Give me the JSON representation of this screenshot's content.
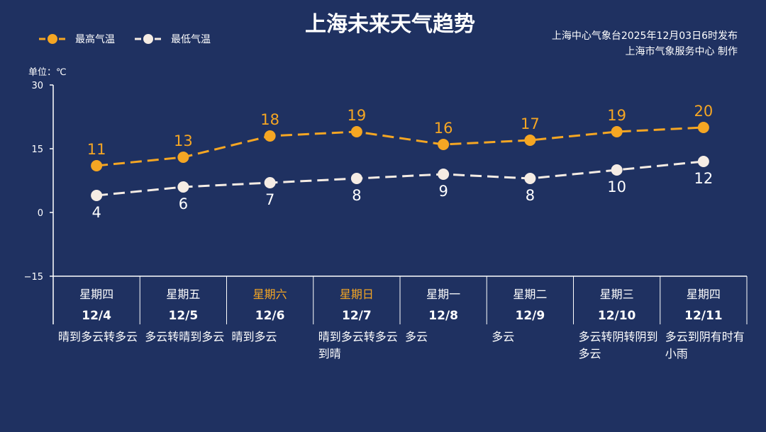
{
  "header": {
    "title": "上海未来天气趋势",
    "source_line1": "上海中心气象台2025年12月03日6时发布",
    "source_line2": "上海市气象服务中心  制作"
  },
  "legend": {
    "high_label": "最高气温",
    "low_label": "最低气温"
  },
  "colors": {
    "background": "#1f3161",
    "high": "#f5a623",
    "low": "#f5ece4",
    "weekend": "#f5a623",
    "text": "#ffffff"
  },
  "chart_data": {
    "type": "line",
    "unit_label": "单位：℃",
    "ylim": [
      -15,
      30
    ],
    "yticks": [
      "30",
      "15",
      "0",
      "−15"
    ],
    "ytick_values": [
      30,
      15,
      0,
      -15
    ],
    "grid": false,
    "legend_position": "top-left",
    "categories": [
      "12/4",
      "12/5",
      "12/6",
      "12/7",
      "12/8",
      "12/9",
      "12/10",
      "12/11"
    ],
    "weekdays": [
      "星期四",
      "星期五",
      "星期六",
      "星期日",
      "星期一",
      "星期二",
      "星期三",
      "星期四"
    ],
    "weekend": [
      false,
      false,
      true,
      true,
      false,
      false,
      false,
      false
    ],
    "weather": [
      "晴到多云转多云",
      "多云转晴到多云",
      "晴到多云",
      "晴到多云转多云到晴",
      "多云",
      "多云",
      "多云转阴转阴到多云",
      "多云到阴有时有小雨"
    ],
    "series": [
      {
        "name": "最高气温",
        "values": [
          11,
          13,
          18,
          19,
          16,
          17,
          19,
          20
        ]
      },
      {
        "name": "最低气温",
        "values": [
          4,
          6,
          7,
          8,
          9,
          8,
          10,
          12
        ]
      }
    ]
  }
}
